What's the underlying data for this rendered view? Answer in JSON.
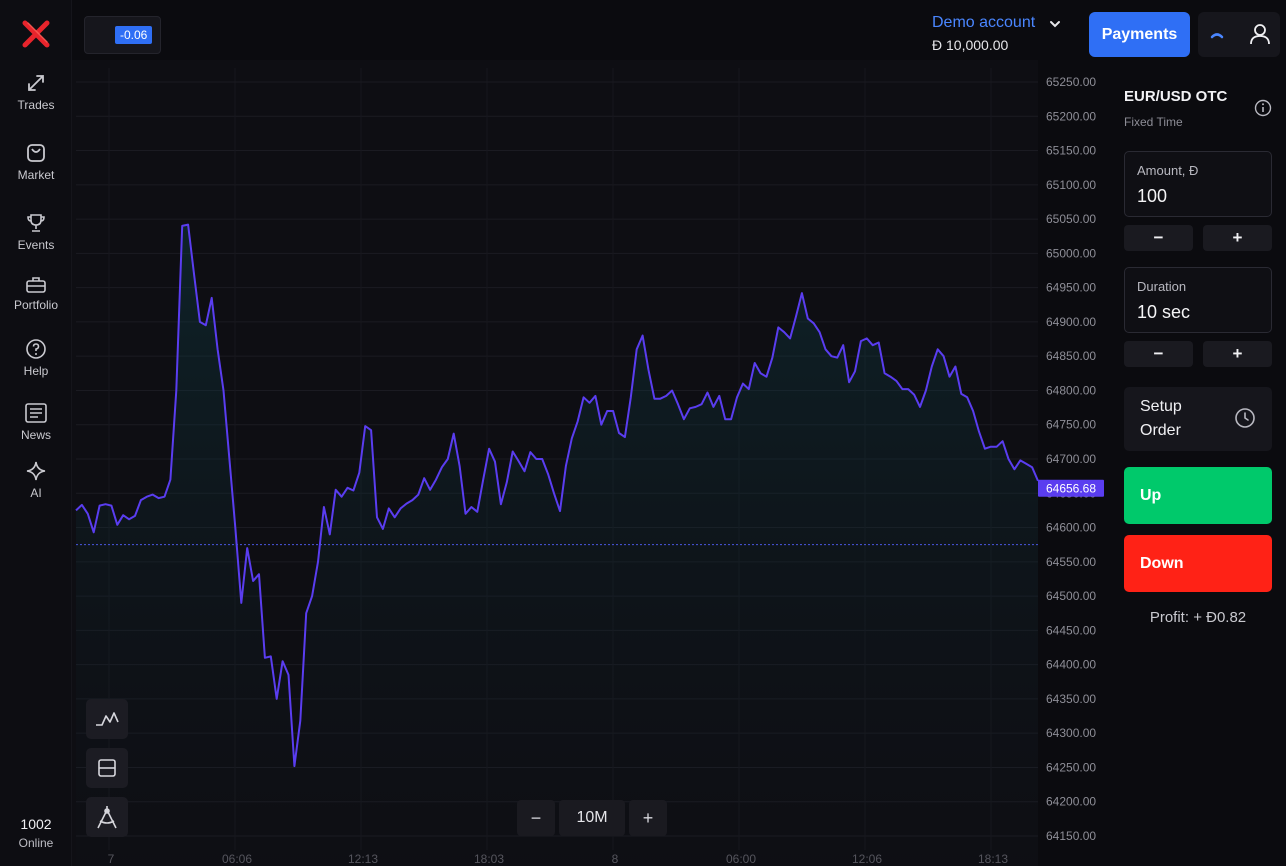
{
  "ticker": {
    "value": "-0.06"
  },
  "sidebar": {
    "items": [
      {
        "label": "Trades",
        "icon": "trades-arrows-icon"
      },
      {
        "label": "Market",
        "icon": "shopping-bag-icon"
      },
      {
        "label": "Events",
        "icon": "trophy-icon"
      },
      {
        "label": "Portfolio",
        "icon": "briefcase-icon"
      },
      {
        "label": "Help",
        "icon": "help-circle-icon"
      },
      {
        "label": "News",
        "icon": "newspaper-icon"
      },
      {
        "label": "AI",
        "icon": "sparkle-icon"
      }
    ],
    "online_count": "1002",
    "online_label": "Online"
  },
  "account": {
    "name": "Demo account",
    "balance": "Đ 10,000.00"
  },
  "payments_label": "Payments",
  "chart_data": {
    "type": "line",
    "y_ticks": [
      "65250.00",
      "65200.00",
      "65150.00",
      "65100.00",
      "65050.00",
      "65000.00",
      "64950.00",
      "64900.00",
      "64850.00",
      "64800.00",
      "64750.00",
      "64700.00",
      "64650.00",
      "64600.00",
      "64550.00",
      "64500.00",
      "64450.00",
      "64400.00",
      "64350.00",
      "64300.00",
      "64250.00",
      "64200.00",
      "64150.00"
    ],
    "x_ticks": [
      "7",
      "06:06",
      "12:13",
      "18:03",
      "8",
      "06:00",
      "12:06",
      "18:13"
    ],
    "ylim": [
      64150,
      65250
    ],
    "current_price": "64656.68",
    "reference_level": 64575,
    "line_color": "#5a3df0",
    "values": [
      64625,
      64633,
      64620,
      64593,
      64632,
      64634,
      64632,
      64604,
      64618,
      64612,
      64617,
      64640,
      64645,
      64648,
      64643,
      64645,
      64670,
      64800,
      65040,
      65042,
      64970,
      64900,
      64895,
      64935,
      64860,
      64800,
      64700,
      64600,
      64490,
      64570,
      64522,
      64532,
      64410,
      64412,
      64350,
      64405,
      64385,
      64252,
      64318,
      64475,
      64500,
      64550,
      64630,
      64590,
      64655,
      64645,
      64658,
      64654,
      64680,
      64748,
      64742,
      64615,
      64598,
      64628,
      64615,
      64628,
      64635,
      64640,
      64648,
      64672,
      64655,
      64670,
      64688,
      64700,
      64737,
      64690,
      64620,
      64630,
      64623,
      64670,
      64715,
      64696,
      64634,
      64666,
      64711,
      64697,
      64682,
      64710,
      64700,
      64700,
      64678,
      64650,
      64624,
      64690,
      64730,
      64755,
      64790,
      64782,
      64792,
      64750,
      64770,
      64770,
      64738,
      64732,
      64790,
      64860,
      64880,
      64830,
      64788,
      64788,
      64792,
      64800,
      64780,
      64758,
      64774,
      64776,
      64780,
      64797,
      64776,
      64792,
      64758,
      64758,
      64790,
      64810,
      64802,
      64840,
      64825,
      64820,
      64848,
      64892,
      64885,
      64876,
      64908,
      64942,
      64905,
      64898,
      64885,
      64860,
      64850,
      64848,
      64866,
      64812,
      64828,
      64872,
      64876,
      64866,
      64870,
      64825,
      64820,
      64814,
      64802,
      64802,
      64794,
      64776,
      64800,
      64835,
      64860,
      64850,
      64820,
      64835,
      64795,
      64790,
      64770,
      64740,
      64715,
      64718,
      64718,
      64726,
      64700,
      64685,
      64698,
      64693,
      64688,
      64668
    ]
  },
  "chart_tools": [
    {
      "icon": "line-chart-icon"
    },
    {
      "icon": "panel-layout-icon"
    },
    {
      "icon": "drawing-compass-icon"
    }
  ],
  "zoom": {
    "minus": "−",
    "value": "10M",
    "plus": "+"
  },
  "panel": {
    "pair": "EUR/USD OTC",
    "subtitle": "Fixed Time",
    "amount_label": "Amount, Đ",
    "amount_value": "100",
    "duration_label": "Duration",
    "duration_value": "10 sec",
    "minus": "−",
    "plus": "+",
    "setup_order": "Setup Order",
    "up_label": "Up",
    "down_label": "Down",
    "profit": "Profit: + Đ0.82",
    "up_color": "#00c96b",
    "down_color": "#ff2216"
  }
}
